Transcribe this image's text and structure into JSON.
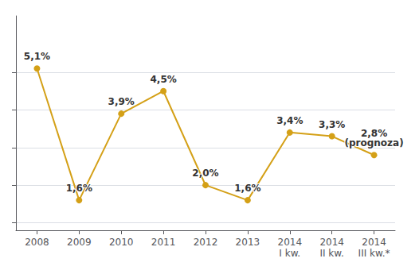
{
  "chart_data": {
    "type": "line",
    "categories": [
      "2008",
      "2009",
      "2010",
      "2011",
      "2012",
      "2013",
      "2014\nI kw.",
      "2014\nII kw.",
      "2014\nIII kw.*"
    ],
    "values": [
      5.1,
      1.6,
      3.9,
      4.5,
      2.0,
      1.6,
      3.4,
      3.3,
      2.8
    ],
    "value_labels": [
      "5,1%",
      "1,6%",
      "3,9%",
      "4,5%",
      "2,0%",
      "1,6%",
      "3,4%",
      "3,3%",
      "2,8%"
    ],
    "data_labels": true,
    "annotations": [
      {
        "text": "(prognoza)",
        "category": "2014\nIII kw.*"
      }
    ],
    "color": "#D4A017",
    "ylim": [
      0.8,
      6.5
    ],
    "yticks": [
      1,
      2,
      3,
      4,
      5
    ],
    "grid": true,
    "tick_labels": "x"
  }
}
